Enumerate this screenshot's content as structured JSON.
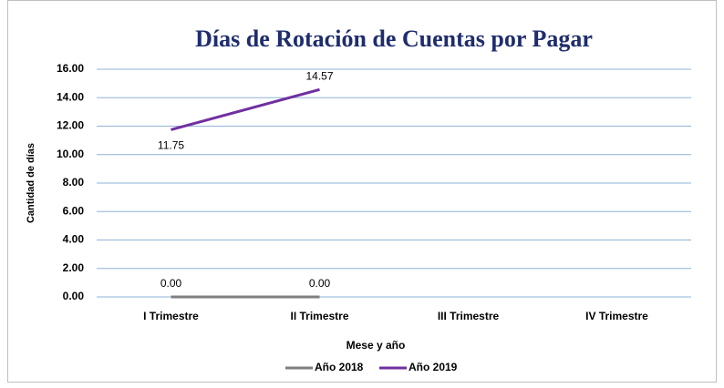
{
  "chart_data": {
    "type": "line",
    "title": "Días de Rotación de Cuentas por Pagar",
    "xlabel": "Mese y año",
    "ylabel": "Cantidad de días",
    "categories": [
      "I Trimestre",
      "II Trimestre",
      "III Trimestre",
      "IV Trimestre"
    ],
    "series": [
      {
        "name": "Año 2018",
        "color": "#7f7f7f",
        "values": [
          0,
          0,
          null,
          null
        ],
        "value_labels": [
          "0.00",
          "0.00",
          null,
          null
        ]
      },
      {
        "name": "Año 2019",
        "color": "#7030a0",
        "values": [
          11.75,
          14.57,
          null,
          null
        ]
      }
    ],
    "ylim": [
      0,
      16
    ],
    "yticks": [
      {
        "value": 0,
        "label": "0.00"
      },
      {
        "value": 2,
        "label": "2.00"
      },
      {
        "value": 4,
        "label": "4.00"
      },
      {
        "value": 6,
        "label": "6.00"
      },
      {
        "value": 8,
        "label": "8.00"
      },
      {
        "value": 10,
        "label": "10.00"
      },
      {
        "value": 12,
        "label": "12.00"
      },
      {
        "value": 14,
        "label": "14.00"
      },
      {
        "value": 16,
        "label": "16.00"
      }
    ],
    "grid": true,
    "legend": "bottom"
  }
}
